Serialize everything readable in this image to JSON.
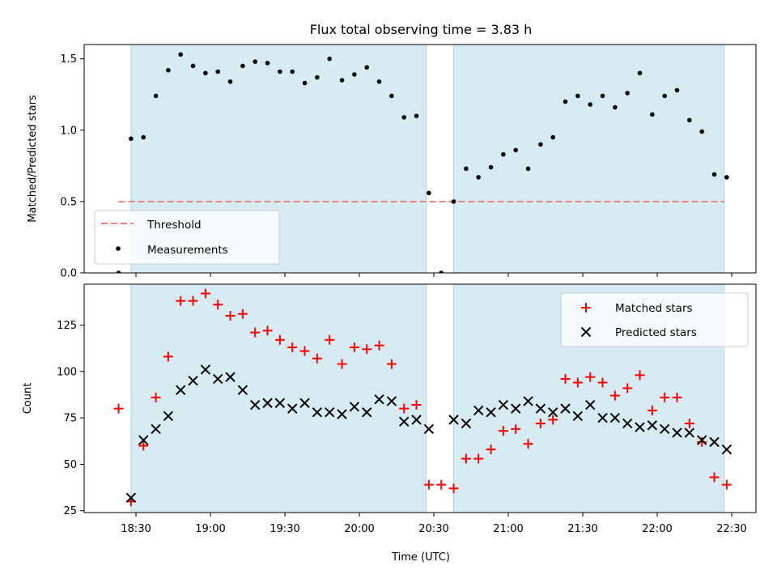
{
  "title": "Flux total observing time = 3.83 h",
  "xlabel": "Time (UTC)",
  "colors": {
    "shade": "#add8e6",
    "threshold": "#f08080",
    "measurements": "#000000",
    "matched": "#ff0000",
    "predicted": "#000000"
  },
  "chart_data": [
    {
      "type": "scatter",
      "ylabel": "Matched/Predicted stars",
      "ylim": [
        0,
        1.6
      ],
      "yticks": [
        "0.0",
        "0.5",
        "1.0",
        "1.5"
      ],
      "legend": {
        "placement": "lower-left",
        "entries": [
          "Threshold",
          "Measurements"
        ]
      },
      "observing_windows": [
        [
          "18:28",
          "20:27"
        ],
        [
          "20:38",
          "22:27"
        ]
      ],
      "threshold": {
        "name": "Threshold",
        "value": 0.5,
        "x": [
          "18:23",
          "22:27"
        ]
      },
      "series": [
        {
          "name": "Measurements",
          "x": [
            "18:23",
            "18:28",
            "18:33",
            "18:38",
            "18:43",
            "18:48",
            "18:53",
            "18:58",
            "19:03",
            "19:08",
            "19:13",
            "19:18",
            "19:23",
            "19:28",
            "19:33",
            "19:38",
            "19:43",
            "19:48",
            "19:53",
            "19:58",
            "20:03",
            "20:08",
            "20:13",
            "20:18",
            "20:23",
            "20:28",
            "20:33",
            "20:38",
            "20:43",
            "20:48",
            "20:53",
            "20:58",
            "21:03",
            "21:08",
            "21:13",
            "21:18",
            "21:23",
            "21:28",
            "21:33",
            "21:38",
            "21:43",
            "21:48",
            "21:53",
            "21:58",
            "22:03",
            "22:08",
            "22:13",
            "22:18",
            "22:23",
            "22:28"
          ],
          "y": [
            0.0,
            0.94,
            0.95,
            1.24,
            1.42,
            1.53,
            1.45,
            1.4,
            1.41,
            1.34,
            1.45,
            1.48,
            1.47,
            1.41,
            1.41,
            1.33,
            1.37,
            1.5,
            1.35,
            1.39,
            1.44,
            1.34,
            1.24,
            1.09,
            1.1,
            0.56,
            0.0,
            0.5,
            0.73,
            0.67,
            0.74,
            0.83,
            0.86,
            0.73,
            0.9,
            0.95,
            1.2,
            1.24,
            1.18,
            1.24,
            1.16,
            1.26,
            1.4,
            1.11,
            1.24,
            1.28,
            1.07,
            0.99,
            0.69,
            0.67
          ]
        }
      ]
    },
    {
      "type": "scatter",
      "ylabel": "Count",
      "xlabel": "Time (UTC)",
      "ylim": [
        24,
        147
      ],
      "yticks": [
        "25",
        "50",
        "75",
        "100",
        "125"
      ],
      "xticks": [
        "18:30",
        "19:00",
        "19:30",
        "20:00",
        "20:30",
        "21:00",
        "21:30",
        "22:00",
        "22:30"
      ],
      "legend": {
        "placement": "upper-right",
        "entries": [
          "Matched stars",
          "Predicted stars"
        ]
      },
      "observing_windows": [
        [
          "18:28",
          "20:27"
        ],
        [
          "20:38",
          "22:27"
        ]
      ],
      "series": [
        {
          "name": "Matched stars",
          "marker": "+",
          "x": [
            "18:23",
            "18:28",
            "18:33",
            "18:38",
            "18:43",
            "18:48",
            "18:53",
            "18:58",
            "19:03",
            "19:08",
            "19:13",
            "19:18",
            "19:23",
            "19:28",
            "19:33",
            "19:38",
            "19:43",
            "19:48",
            "19:53",
            "19:58",
            "20:03",
            "20:08",
            "20:13",
            "20:18",
            "20:23",
            "20:28",
            "20:33",
            "20:38",
            "20:43",
            "20:48",
            "20:53",
            "20:58",
            "21:03",
            "21:08",
            "21:13",
            "21:18",
            "21:23",
            "21:28",
            "21:33",
            "21:38",
            "21:43",
            "21:48",
            "21:53",
            "21:58",
            "22:03",
            "22:08",
            "22:13",
            "22:18",
            "22:23",
            "22:28"
          ],
          "y": [
            80,
            30,
            60,
            86,
            108,
            138,
            138,
            142,
            136,
            130,
            131,
            121,
            122,
            117,
            113,
            111,
            107,
            117,
            104,
            113,
            112,
            114,
            104,
            80,
            82,
            39,
            39,
            37,
            53,
            53,
            58,
            68,
            69,
            61,
            72,
            74,
            96,
            94,
            97,
            94,
            87,
            91,
            98,
            79,
            86,
            86,
            72,
            62,
            43,
            39
          ]
        },
        {
          "name": "Predicted stars",
          "marker": "x",
          "x": [
            "18:28",
            "18:33",
            "18:38",
            "18:43",
            "18:48",
            "18:53",
            "18:58",
            "19:03",
            "19:08",
            "19:13",
            "19:18",
            "19:23",
            "19:28",
            "19:33",
            "19:38",
            "19:43",
            "19:48",
            "19:53",
            "19:58",
            "20:03",
            "20:08",
            "20:13",
            "20:18",
            "20:23",
            "20:28",
            "20:38",
            "20:43",
            "20:48",
            "20:53",
            "20:58",
            "21:03",
            "21:08",
            "21:13",
            "21:18",
            "21:23",
            "21:28",
            "21:33",
            "21:38",
            "21:43",
            "21:48",
            "21:53",
            "21:58",
            "22:03",
            "22:08",
            "22:13",
            "22:18",
            "22:23",
            "22:28"
          ],
          "y": [
            32,
            63,
            69,
            76,
            90,
            95,
            101,
            96,
            97,
            90,
            82,
            83,
            83,
            80,
            83,
            78,
            78,
            77,
            81,
            78,
            85,
            84,
            73,
            74,
            69,
            74,
            72,
            79,
            78,
            82,
            80,
            84,
            80,
            78,
            80,
            76,
            82,
            75,
            75,
            72,
            70,
            71,
            69,
            67,
            67,
            63,
            62,
            58
          ]
        }
      ]
    }
  ]
}
